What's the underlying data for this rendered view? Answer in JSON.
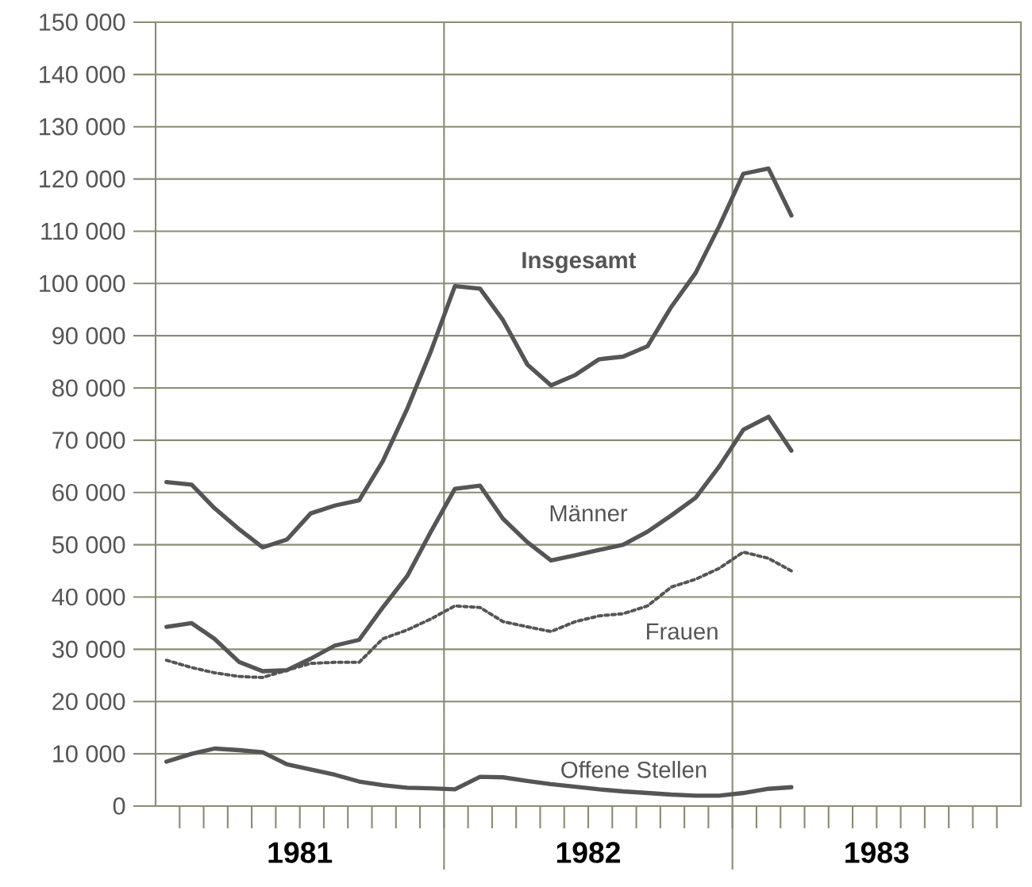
{
  "chart_data": {
    "type": "line",
    "x": [
      "1981-01-15",
      "1981-02-15",
      "1981-03-15",
      "1981-04-15",
      "1981-05-15",
      "1981-06-15",
      "1981-07-15",
      "1981-08-15",
      "1981-09-15",
      "1981-10-15",
      "1981-11-15",
      "1981-12-15",
      "1982-01-15",
      "1982-02-15",
      "1982-03-15",
      "1982-04-15",
      "1982-05-15",
      "1982-06-15",
      "1982-07-15",
      "1982-08-15",
      "1982-09-15",
      "1982-10-15",
      "1982-11-15",
      "1982-12-15",
      "1983-01-15",
      "1983-02-15",
      "1983-03-15"
    ],
    "series": [
      {
        "name": "Insgesamt",
        "color": "#555555",
        "values": [
          62000,
          61500,
          57000,
          53000,
          49500,
          51000,
          56000,
          57500,
          58500,
          66000,
          76000,
          87000,
          99500,
          99000,
          93000,
          84500,
          80500,
          82500,
          85500,
          86000,
          88000,
          95500,
          102000,
          111000,
          121000,
          122000,
          113000
        ]
      },
      {
        "name": "Männer",
        "color": "#555555",
        "values": [
          34300,
          35000,
          32000,
          27600,
          25800,
          26000,
          28200,
          30700,
          31800,
          38000,
          44000,
          52500,
          60700,
          61300,
          55000,
          50500,
          47000,
          48000,
          49000,
          50000,
          52500,
          55600,
          59000,
          65000,
          72000,
          74500,
          68000
        ]
      },
      {
        "name": "Frauen",
        "color": "#555555",
        "line_style": "dotted",
        "values": [
          27900,
          26500,
          25500,
          24800,
          24600,
          26000,
          27300,
          27500,
          27500,
          32000,
          33700,
          35800,
          38300,
          38000,
          35300,
          34300,
          33400,
          35300,
          36400,
          36800,
          38300,
          41900,
          43400,
          45500,
          48600,
          47400,
          45000
        ]
      },
      {
        "name": "Offene Stellen",
        "color": "#555555",
        "values": [
          8500,
          10000,
          11000,
          10700,
          10300,
          8000,
          7000,
          6000,
          4700,
          4000,
          3500,
          3400,
          3200,
          5600,
          5500,
          4800,
          4200,
          3700,
          3200,
          2800,
          2500,
          2200,
          2000,
          2000,
          2500,
          3300,
          3600
        ]
      }
    ],
    "xlim": [
      "1981-01-01",
      "1984-01-01"
    ],
    "xticks": [
      {
        "value": "1981-02-01",
        "label": null
      },
      {
        "value": "1981-03-01",
        "label": null
      },
      {
        "value": "1981-04-01",
        "label": null
      },
      {
        "value": "1981-05-01",
        "label": null
      },
      {
        "value": "1981-06-01",
        "label": null
      },
      {
        "value": "1981-07-01",
        "label": "1981"
      },
      {
        "value": "1981-08-01",
        "label": null
      },
      {
        "value": "1981-09-01",
        "label": null
      },
      {
        "value": "1981-10-01",
        "label": null
      },
      {
        "value": "1981-11-01",
        "label": null
      },
      {
        "value": "1981-12-01",
        "label": null
      },
      {
        "value": "1982-01-01",
        "label": null
      },
      {
        "value": "1982-02-01",
        "label": null
      },
      {
        "value": "1982-03-01",
        "label": null
      },
      {
        "value": "1982-04-01",
        "label": null
      },
      {
        "value": "1982-05-01",
        "label": null
      },
      {
        "value": "1982-06-01",
        "label": null
      },
      {
        "value": "1982-07-01",
        "label": "1982"
      },
      {
        "value": "1982-08-01",
        "label": null
      },
      {
        "value": "1982-09-01",
        "label": null
      },
      {
        "value": "1982-10-01",
        "label": null
      },
      {
        "value": "1982-11-01",
        "label": null
      },
      {
        "value": "1982-12-01",
        "label": null
      },
      {
        "value": "1983-01-01",
        "label": null
      },
      {
        "value": "1983-02-01",
        "label": null
      },
      {
        "value": "1983-03-01",
        "label": null
      },
      {
        "value": "1983-04-01",
        "label": null
      },
      {
        "value": "1983-05-01",
        "label": null
      },
      {
        "value": "1983-06-01",
        "label": null
      },
      {
        "value": "1983-07-01",
        "label": "1983"
      },
      {
        "value": "1983-08-01",
        "label": null
      },
      {
        "value": "1983-09-01",
        "label": null
      },
      {
        "value": "1983-10-01",
        "label": null
      },
      {
        "value": "1983-11-01",
        "label": null
      },
      {
        "value": "1983-12-01",
        "label": null
      }
    ],
    "ylim": [
      0,
      150000
    ],
    "yticks": [
      0,
      {
        "value": 10000,
        "label": "10 000"
      },
      {
        "value": 20000,
        "label": "20 000"
      },
      {
        "value": 30000,
        "label": "30 000"
      },
      {
        "value": 40000,
        "label": "40 000"
      },
      {
        "value": 50000,
        "label": "50 000"
      },
      {
        "value": 60000,
        "label": "60 000"
      },
      {
        "value": 70000,
        "label": "70 000"
      },
      {
        "value": 80000,
        "label": "80 000"
      },
      {
        "value": 90000,
        "label": "90 000"
      },
      {
        "value": 100000,
        "label": "100 000"
      },
      {
        "value": 110000,
        "label": "110 000"
      },
      {
        "value": 120000,
        "label": "120 000"
      },
      {
        "value": 130000,
        "label": "130 000"
      },
      {
        "value": 140000,
        "label": "140 000"
      },
      {
        "value": 150000,
        "label": "150 000"
      }
    ],
    "grid": "y",
    "ref_lines": [
      {
        "axis": "x",
        "value": "1982-01-01"
      },
      {
        "axis": "x",
        "value": "1983-01-01"
      }
    ]
  }
}
